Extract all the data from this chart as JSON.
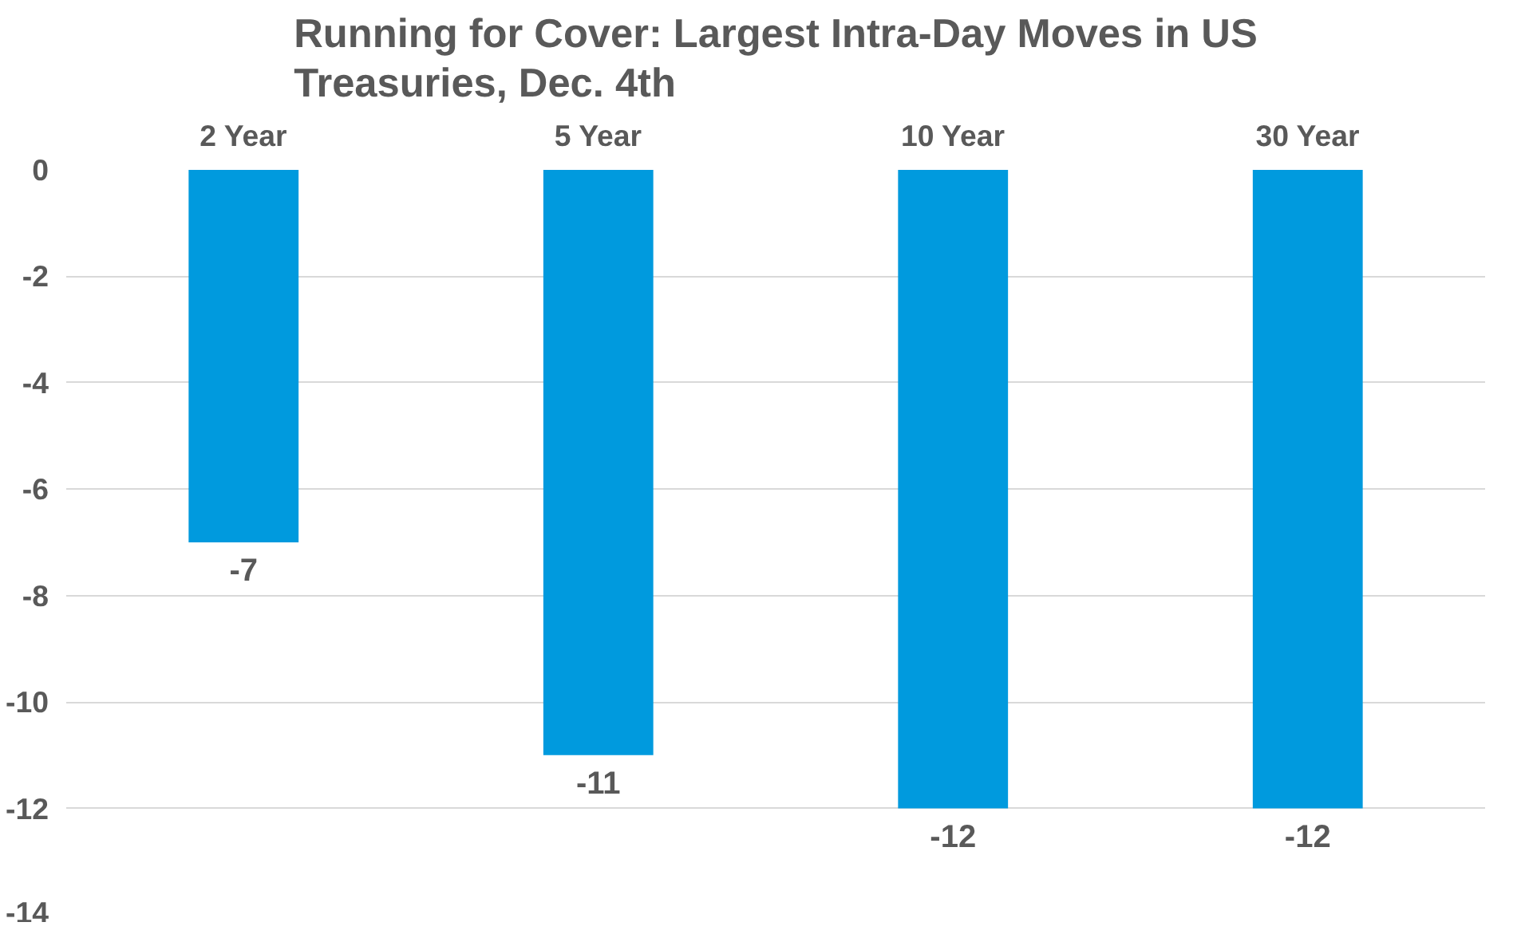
{
  "chart_data": {
    "type": "bar",
    "title": "Running for Cover: Largest Intra-Day Moves in US Treasuries, Dec. 4th",
    "categories": [
      "2 Year",
      "5 Year",
      "10 Year",
      "30 Year"
    ],
    "values": [
      -7,
      -11,
      -12,
      -12
    ],
    "color": "#009ade",
    "ylim": [
      -14,
      0
    ],
    "yticks": [
      0,
      -2,
      -4,
      -6,
      -8,
      -10,
      -12,
      -14
    ],
    "grid": "y",
    "data_labels": true
  }
}
